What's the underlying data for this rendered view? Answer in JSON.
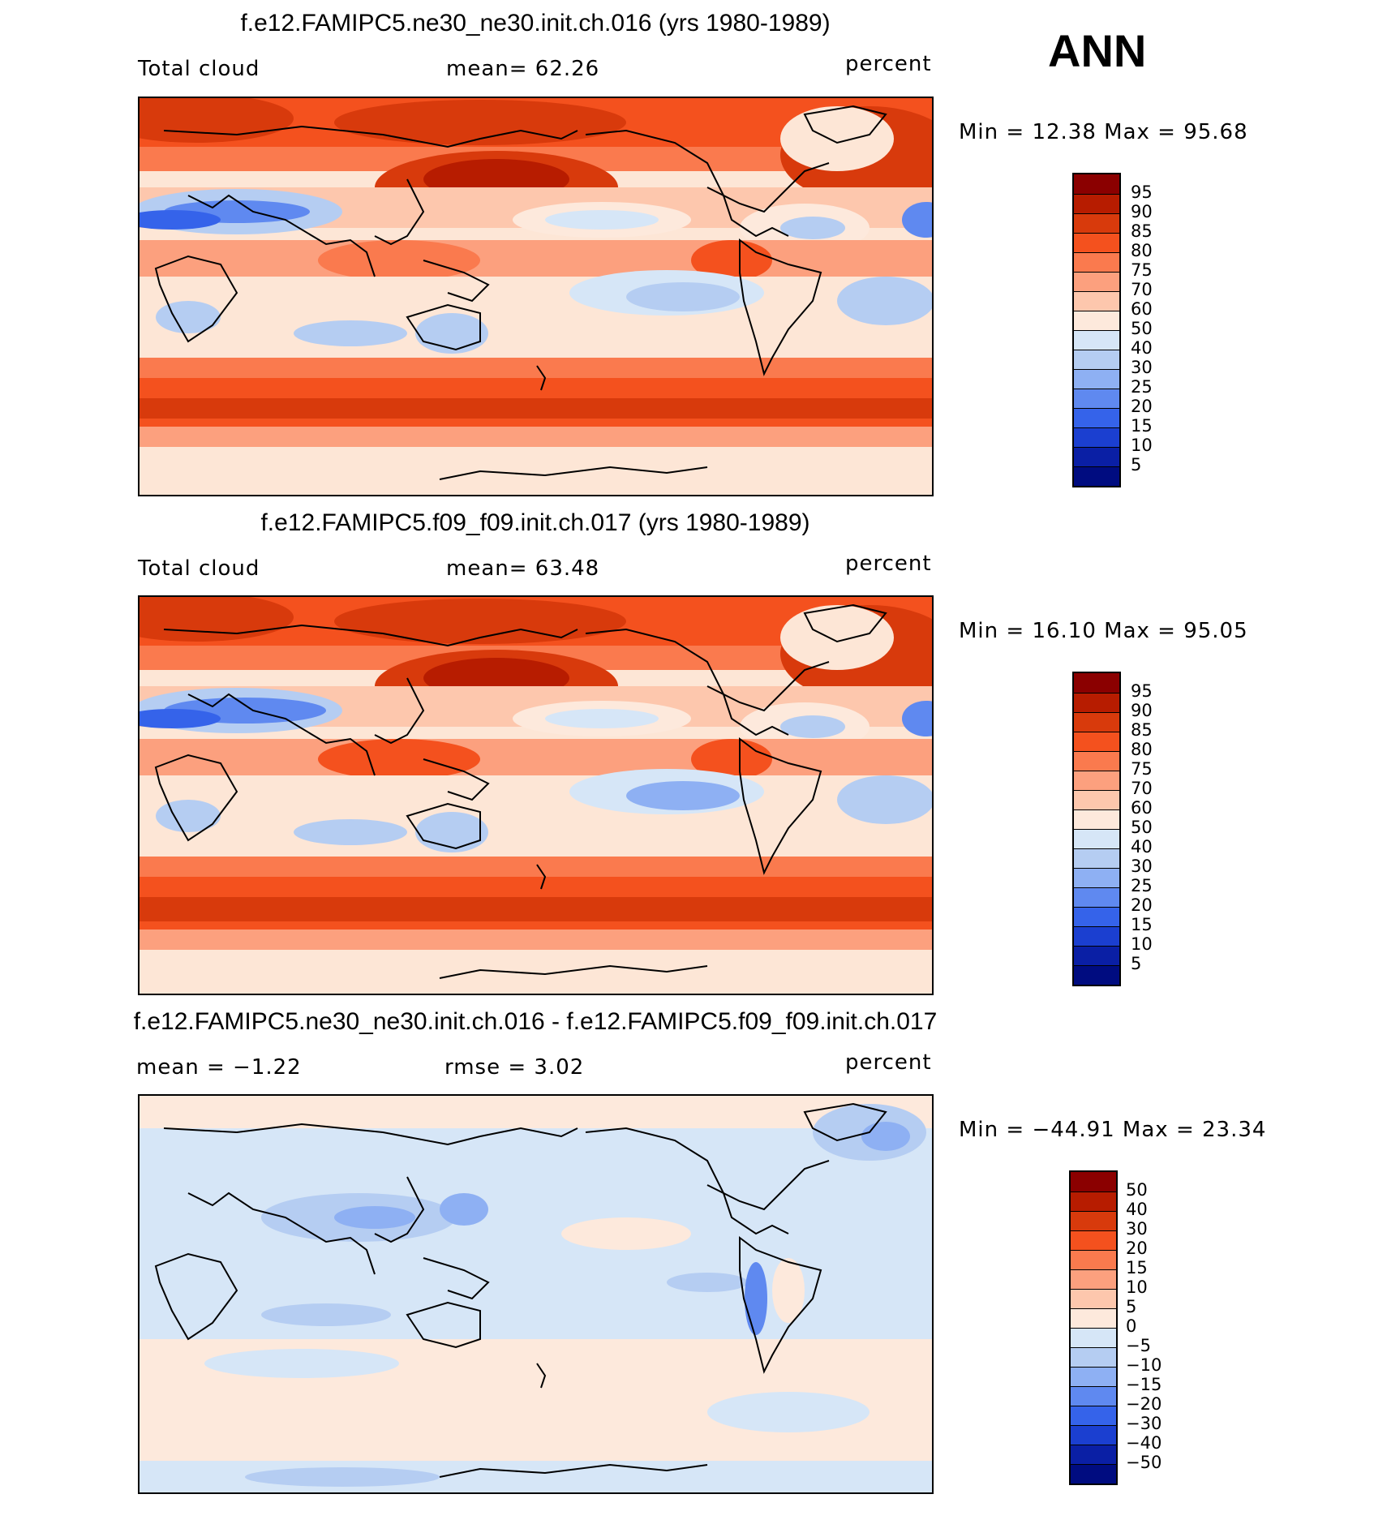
{
  "season": "ANN",
  "panels": [
    {
      "title": "f.e12.FAMIPC5.ne30_ne30.init.ch.016 (yrs 1980-1989)",
      "left_label": "Total cloud",
      "center_label": "mean=   62.26",
      "right_label": "percent",
      "minmax": "Min =   12.38 Max =   95.68",
      "colorbar": {
        "labels": [
          "95",
          "90",
          "85",
          "80",
          "75",
          "70",
          "60",
          "50",
          "40",
          "30",
          "25",
          "20",
          "15",
          "10",
          "5"
        ],
        "colors": [
          "#8b0000",
          "#b71c00",
          "#d83a0c",
          "#f4511e",
          "#fa7a4e",
          "#fca07e",
          "#fdc7ad",
          "#fde9dc",
          "#d6e6f7",
          "#b5cdf2",
          "#8eb0f3",
          "#5f89f0",
          "#3563ea",
          "#1b3fd0",
          "#0a1fa5",
          "#000c80"
        ]
      },
      "field_mean": 62.26,
      "field_min": 12.38,
      "field_max": 95.68,
      "units": "percent"
    },
    {
      "title": "f.e12.FAMIPC5.f09_f09.init.ch.017 (yrs 1980-1989)",
      "left_label": "Total cloud",
      "center_label": "mean=   63.48",
      "right_label": "percent",
      "minmax": "Min =   16.10 Max =   95.05",
      "colorbar": {
        "labels": [
          "95",
          "90",
          "85",
          "80",
          "75",
          "70",
          "60",
          "50",
          "40",
          "30",
          "25",
          "20",
          "15",
          "10",
          "5"
        ],
        "colors": [
          "#8b0000",
          "#b71c00",
          "#d83a0c",
          "#f4511e",
          "#fa7a4e",
          "#fca07e",
          "#fdc7ad",
          "#fde9dc",
          "#d6e6f7",
          "#b5cdf2",
          "#8eb0f3",
          "#5f89f0",
          "#3563ea",
          "#1b3fd0",
          "#0a1fa5",
          "#000c80"
        ]
      },
      "field_mean": 63.48,
      "field_min": 16.1,
      "field_max": 95.05,
      "units": "percent"
    },
    {
      "title": "f.e12.FAMIPC5.ne30_ne30.init.ch.016 - f.e12.FAMIPC5.f09_f09.init.ch.017",
      "left_label": "mean =   −1.22",
      "center_label": "rmse =    3.02",
      "right_label": "percent",
      "minmax": "Min = −44.91 Max =   23.34",
      "colorbar": {
        "labels": [
          "50",
          "40",
          "30",
          "20",
          "15",
          "10",
          "5",
          "0",
          "−5",
          "−10",
          "−15",
          "−20",
          "−30",
          "−40",
          "−50"
        ],
        "colors": [
          "#8b0000",
          "#b71c00",
          "#d83a0c",
          "#f4511e",
          "#fa7a4e",
          "#fca07e",
          "#fdc7ad",
          "#fde9dc",
          "#d6e6f7",
          "#b5cdf2",
          "#8eb0f3",
          "#5f89f0",
          "#3563ea",
          "#1b3fd0",
          "#0a1fa5",
          "#000c80"
        ]
      },
      "field_mean": -1.22,
      "field_rmse": 3.02,
      "field_min": -44.91,
      "field_max": 23.34,
      "units": "percent"
    }
  ]
}
